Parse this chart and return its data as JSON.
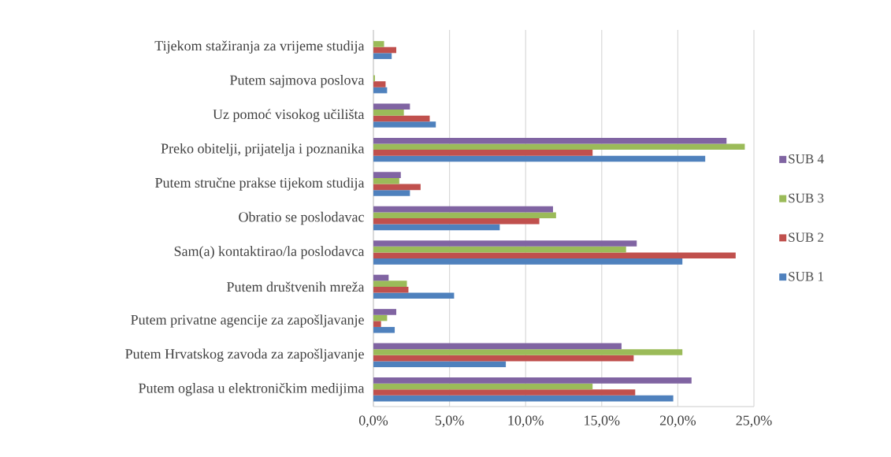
{
  "chart_data": {
    "type": "bar",
    "orientation": "horizontal",
    "categories": [
      "Tijekom stažiranja za vrijeme studija",
      "Putem sajmova poslova",
      "Uz pomoć visokog učilišta",
      "Preko obitelji, prijatelja i poznanika",
      "Putem stručne prakse tijekom studija",
      "Obratio se poslodavac",
      "Sam(a) kontaktirao/la poslodavca",
      "Putem društvenih mreža",
      "Putem privatne agencije za zapošljavanje",
      "Putem Hrvatskog zavoda za zapošljavanje",
      "Putem oglasa u elektroničkim medijima"
    ],
    "series": [
      {
        "name": "SUB 1",
        "color": "#4f81bd",
        "values": [
          1.2,
          0.9,
          4.1,
          21.8,
          2.4,
          8.3,
          20.3,
          5.3,
          1.4,
          8.7,
          19.7
        ]
      },
      {
        "name": "SUB 2",
        "color": "#c0504d",
        "values": [
          1.5,
          0.8,
          3.7,
          14.4,
          3.1,
          10.9,
          23.8,
          2.3,
          0.5,
          17.1,
          17.2
        ]
      },
      {
        "name": "SUB 3",
        "color": "#9bbb59",
        "values": [
          0.7,
          0.1,
          2.0,
          24.4,
          1.7,
          12.0,
          16.6,
          2.2,
          0.9,
          20.3,
          14.4
        ]
      },
      {
        "name": "SUB 4",
        "color": "#8064a2",
        "values": [
          0,
          0,
          2.4,
          23.2,
          1.8,
          11.8,
          17.3,
          1.0,
          1.5,
          16.3,
          20.9
        ]
      }
    ],
    "xlim": [
      0,
      25
    ],
    "xticks": [
      {
        "value": 0,
        "label": "0,0%"
      },
      {
        "value": 5,
        "label": "5,0%"
      },
      {
        "value": 10,
        "label": "10,0%"
      },
      {
        "value": 15,
        "label": "15,0%"
      },
      {
        "value": 20,
        "label": "20,0%"
      },
      {
        "value": 25,
        "label": "25,0%"
      }
    ],
    "grid": "x",
    "legend": "right"
  }
}
